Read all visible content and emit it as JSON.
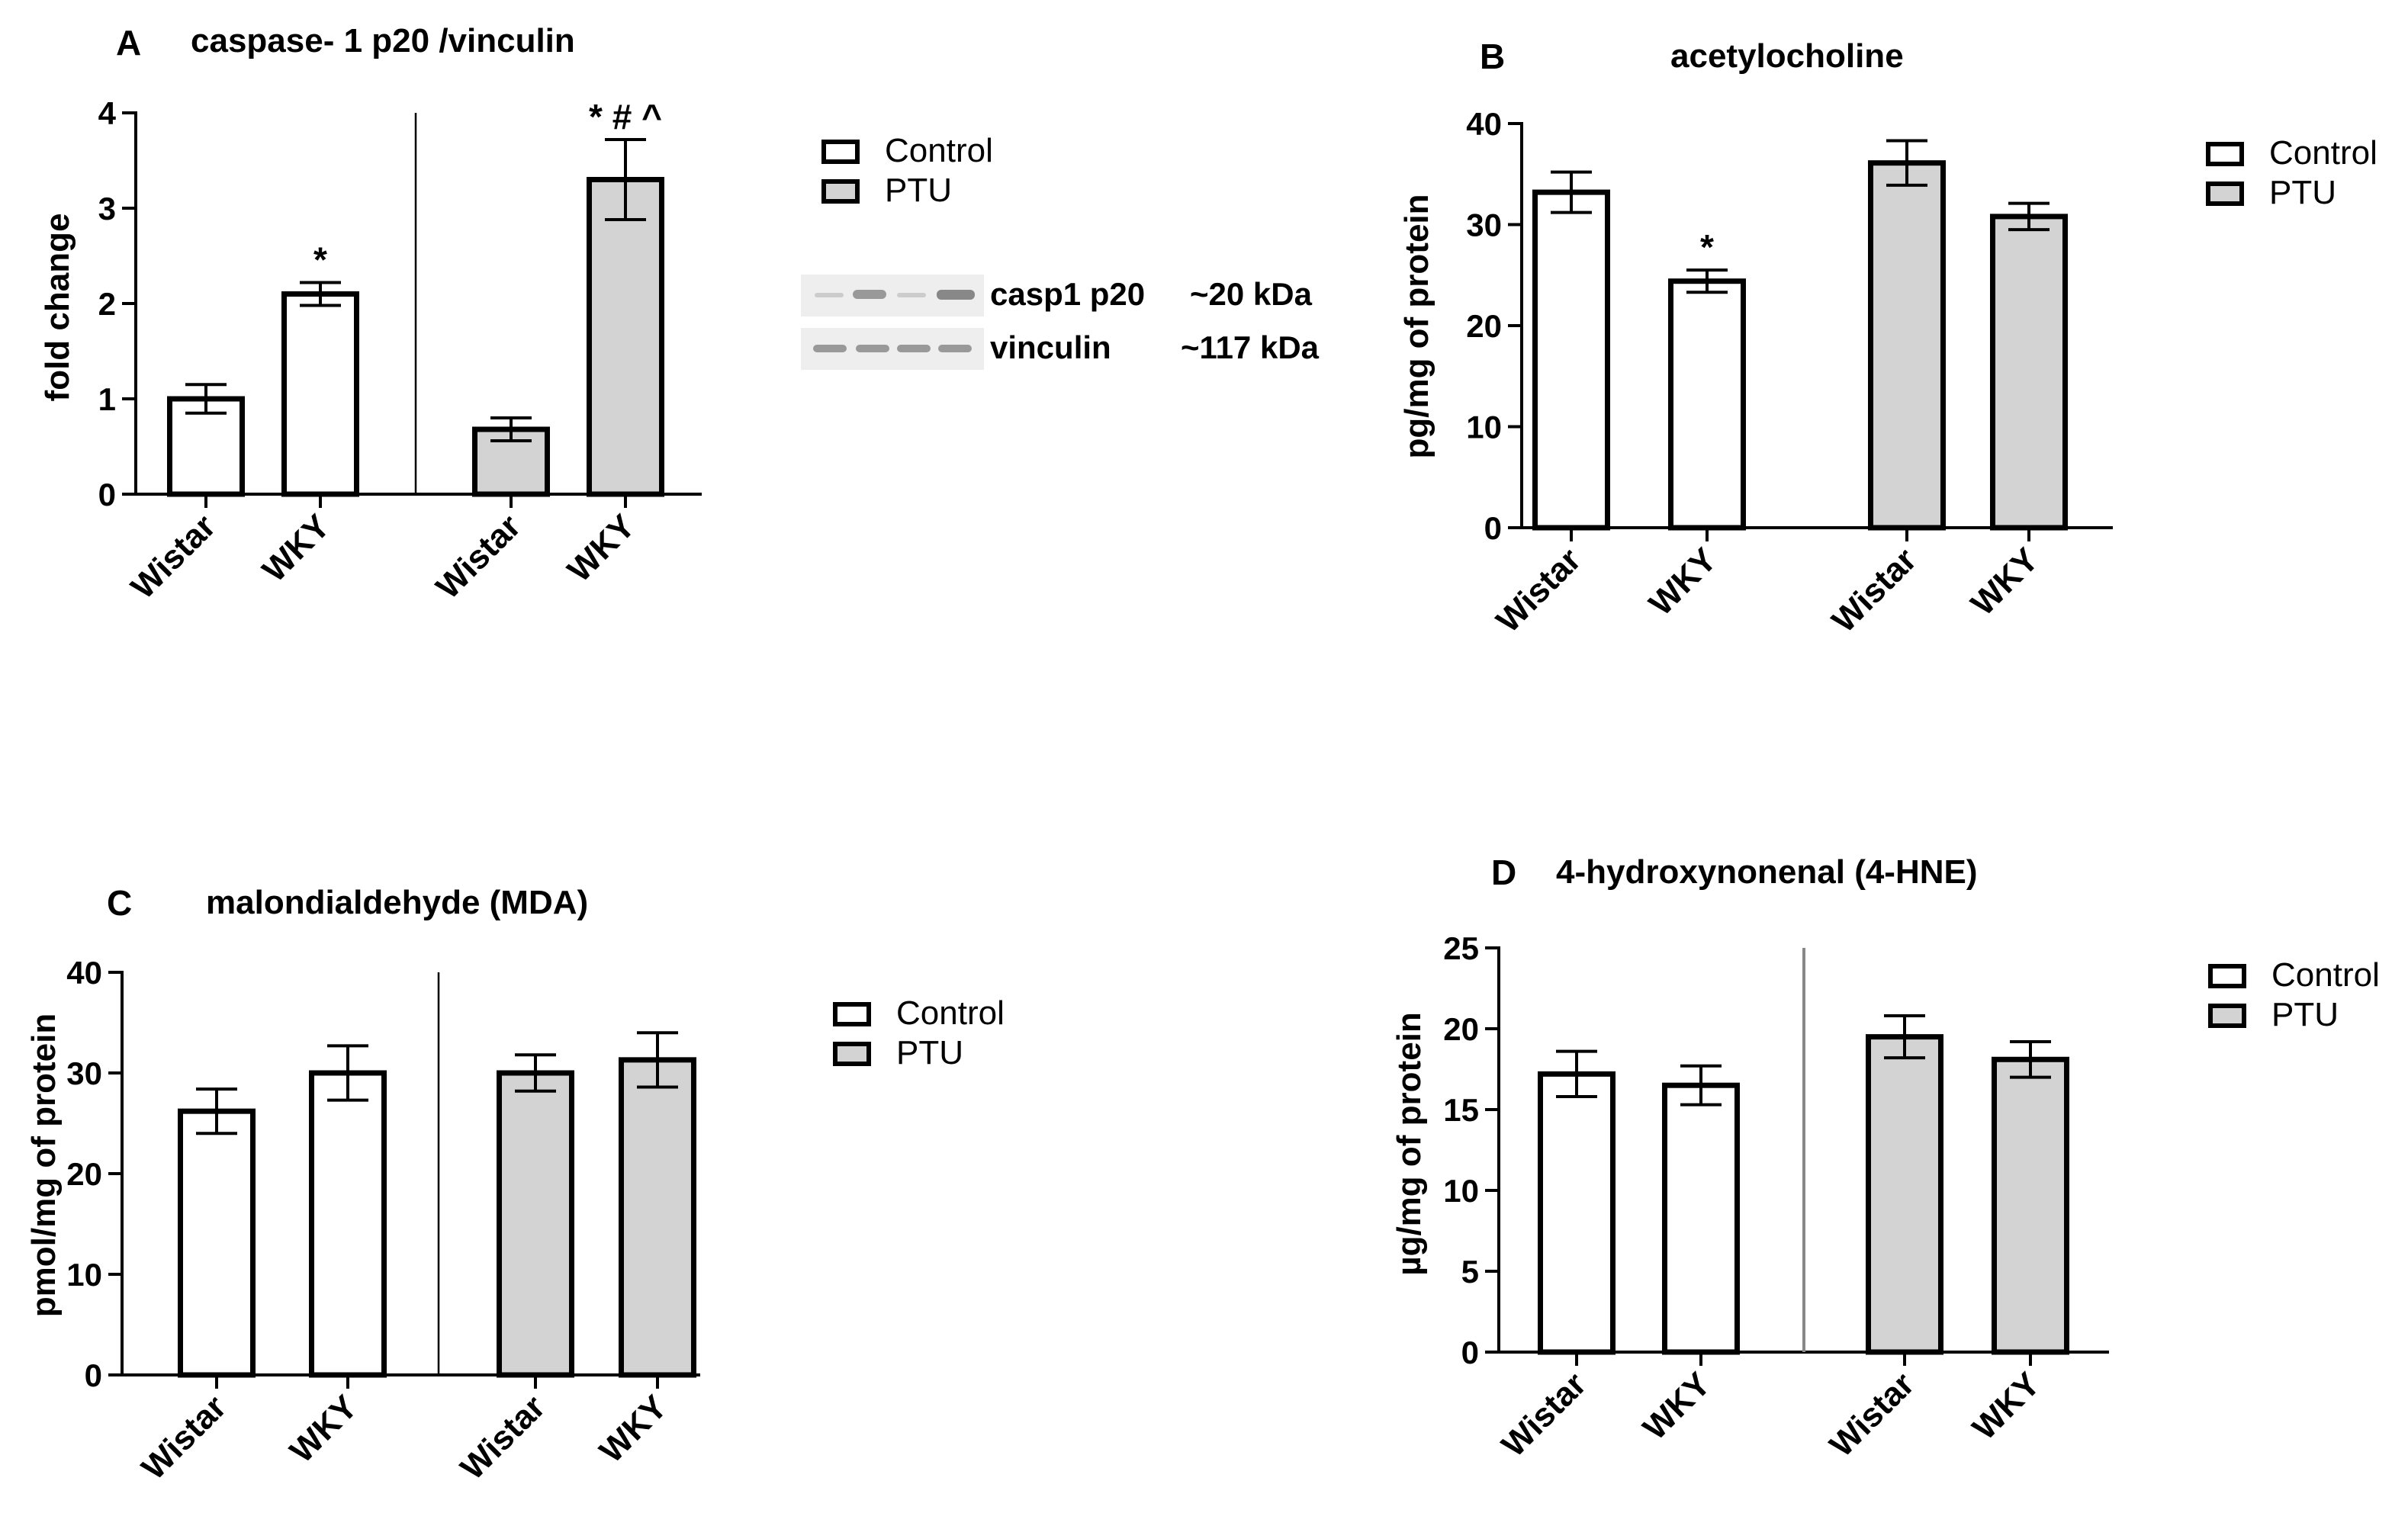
{
  "colors": {
    "control_fill": "#ffffff",
    "ptu_fill": "#d3d3d3",
    "stroke": "#000000",
    "divider": "#888888",
    "blot_bg": "#eeeeee",
    "band": "#888888"
  },
  "chart_data": [
    {
      "id": "A",
      "panel_letter": "A",
      "type": "bar",
      "title": "caspase- 1 p20 /vinculin",
      "ylabel": "fold change",
      "xlabel": "",
      "ylim": [
        0,
        4
      ],
      "yticks": [
        0,
        1,
        2,
        3,
        4
      ],
      "categories": [
        "Wistar",
        "WKY",
        "Wistar",
        "WKY"
      ],
      "groups": [
        "Control",
        "Control",
        "PTU",
        "PTU"
      ],
      "values": [
        1.0,
        2.1,
        0.68,
        3.3
      ],
      "errors": [
        0.15,
        0.12,
        0.12,
        0.42
      ],
      "annotations": [
        "",
        "*",
        "",
        "* # ^"
      ],
      "legend": [
        "Control",
        "PTU"
      ],
      "legend_position": "right",
      "divider": true
    },
    {
      "id": "B",
      "panel_letter": "B",
      "type": "bar",
      "title": "acetylocholine",
      "ylabel": "pg/mg of protein",
      "xlabel": "",
      "ylim": [
        0,
        40
      ],
      "yticks": [
        0,
        10,
        20,
        30,
        40
      ],
      "categories": [
        "Wistar",
        "WKY",
        "Wistar",
        "WKY"
      ],
      "groups": [
        "Control",
        "Control",
        "PTU",
        "PTU"
      ],
      "values": [
        33.2,
        24.4,
        36.1,
        30.8
      ],
      "errors": [
        2.0,
        1.1,
        2.2,
        1.3
      ],
      "annotations": [
        "",
        "*",
        "",
        ""
      ],
      "legend": [
        "Control",
        "PTU"
      ],
      "legend_position": "right",
      "divider": false
    },
    {
      "id": "C",
      "panel_letter": "C",
      "type": "bar",
      "title": "malondialdehyde (MDA)",
      "ylabel": "pmol/mg of protein",
      "xlabel": "",
      "ylim": [
        0,
        40
      ],
      "yticks": [
        0,
        10,
        20,
        30,
        40
      ],
      "categories": [
        "Wistar",
        "WKY",
        "Wistar",
        "WKY"
      ],
      "groups": [
        "Control",
        "Control",
        "PTU",
        "PTU"
      ],
      "values": [
        26.2,
        30.0,
        30.0,
        31.3
      ],
      "errors": [
        2.2,
        2.7,
        1.8,
        2.7
      ],
      "annotations": [
        "",
        "",
        "",
        ""
      ],
      "legend": [
        "Control",
        "PTU"
      ],
      "legend_position": "right",
      "divider": true
    },
    {
      "id": "D",
      "panel_letter": "D",
      "type": "bar",
      "title": "4-hydroxynonenal (4-HNE)",
      "ylabel": "µg/mg of protein",
      "xlabel": "",
      "ylim": [
        0,
        25
      ],
      "yticks": [
        0,
        5,
        10,
        15,
        20,
        25
      ],
      "categories": [
        "Wistar",
        "WKY",
        "Wistar",
        "WKY"
      ],
      "groups": [
        "Control",
        "Control",
        "PTU",
        "PTU"
      ],
      "values": [
        17.2,
        16.5,
        19.5,
        18.1
      ],
      "errors": [
        1.4,
        1.2,
        1.3,
        1.1
      ],
      "annotations": [
        "",
        "",
        "",
        ""
      ],
      "legend": [
        "Control",
        "PTU"
      ],
      "legend_position": "right",
      "divider": true
    }
  ],
  "western_blot": {
    "bands": [
      {
        "label": "casp1 p20",
        "size": "~20 kDa"
      },
      {
        "label": "vinculin",
        "size": "~117 kDa"
      }
    ]
  }
}
